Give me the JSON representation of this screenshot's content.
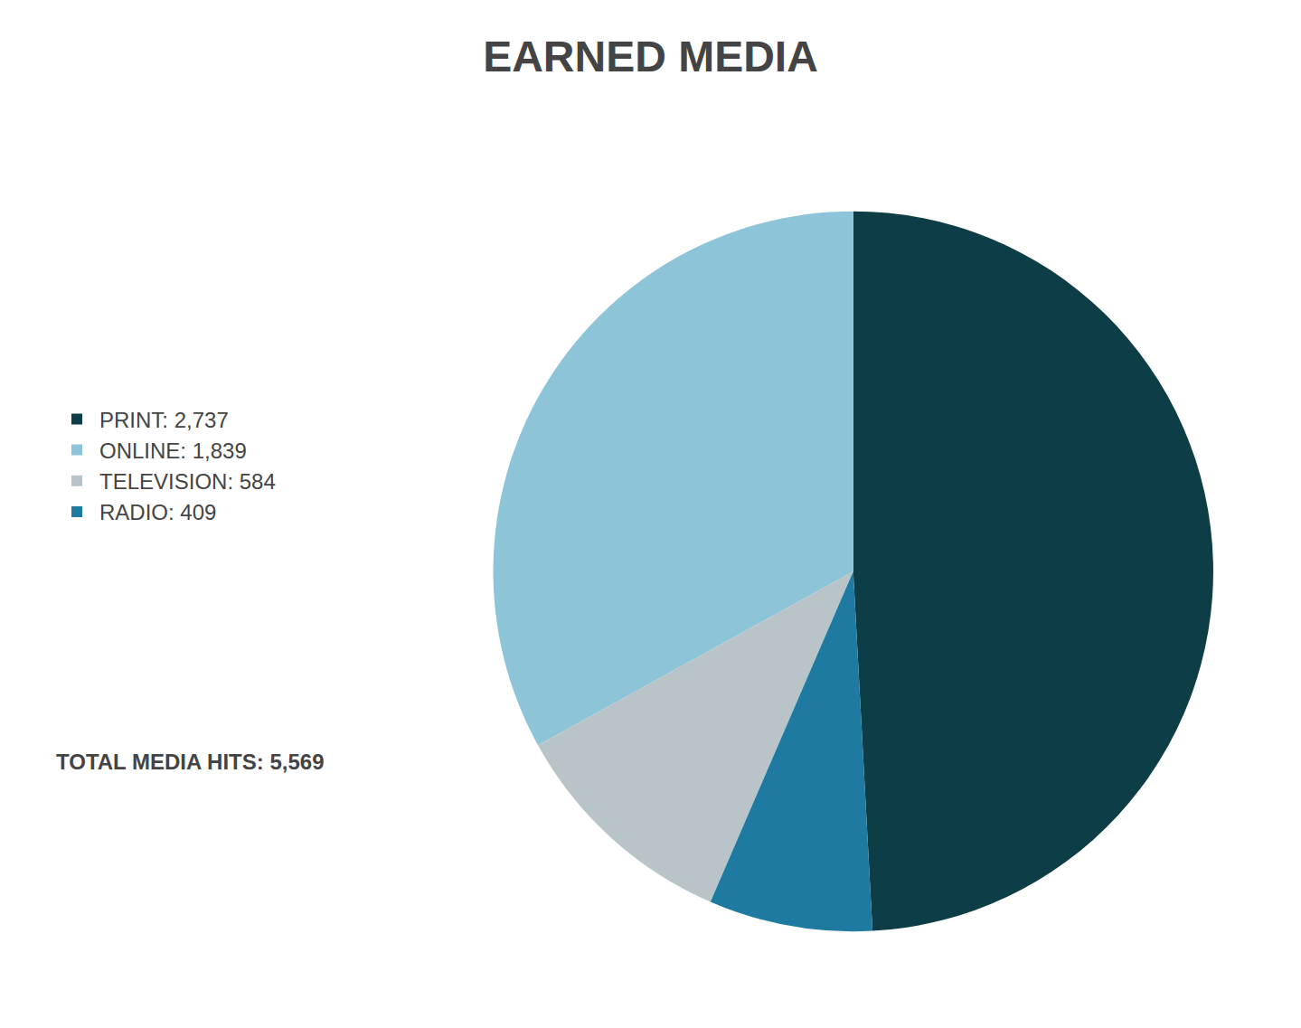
{
  "chart_data": {
    "type": "pie",
    "title": "EARNED MEDIA",
    "categories": [
      "PRINT: 2,737",
      "ONLINE: 1,839",
      "TELEVISION: 584",
      "RADIO: 409"
    ],
    "values": [
      2737,
      1839,
      584,
      409
    ],
    "colors": [
      "#0d3d47",
      "#8ec4d8",
      "#b8c4c8",
      "#1e7aa0"
    ],
    "annotations": [
      "TOTAL MEDIA HITS: 5,569"
    ],
    "legend": "left",
    "data_labels": false
  }
}
